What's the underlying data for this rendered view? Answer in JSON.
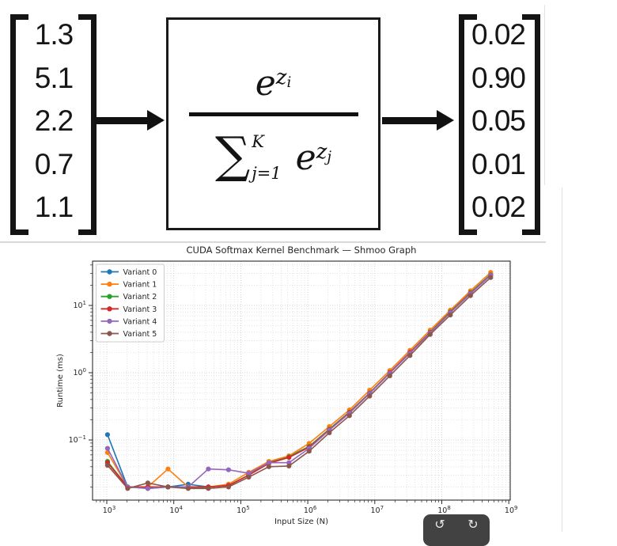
{
  "diagram": {
    "input_vector": [
      "1.3",
      "5.1",
      "2.2",
      "0.7",
      "1.1"
    ],
    "output_vector": [
      "0.02",
      "0.90",
      "0.05",
      "0.01",
      "0.02"
    ],
    "formula": {
      "numerator_base": "e",
      "numerator_exp": "z",
      "numerator_exp_sub": "i",
      "sum_symbol": "∑",
      "sum_upper": "K",
      "sum_lower": "j=1",
      "den_base": "e",
      "den_exp": "z",
      "den_exp_sub": "j"
    }
  },
  "chart_data": {
    "type": "line",
    "title": "CUDA Softmax Kernel Benchmark — Shmoo Graph",
    "xlabel": "Input Size (N)",
    "ylabel": "Runtime (ms)",
    "xscale": "log",
    "yscale": "log",
    "xlim_log10": [
      2.79,
      9.02
    ],
    "ylim_log10": [
      -1.894,
      1.66
    ],
    "x_tick_decades": [
      3,
      4,
      5,
      6,
      7,
      8,
      9
    ],
    "y_tick_decades": [
      1,
      0,
      -1
    ],
    "grid": "both-major-minor-dotted",
    "legend_position": "upper-left",
    "x": [
      1024,
      2048,
      4096,
      8192,
      16384,
      32768,
      65536,
      131072,
      262144,
      524288,
      1048576,
      2097152,
      4194304,
      8388608,
      16777216,
      33554432,
      67108864,
      134217728,
      268435456,
      536870912
    ],
    "series": [
      {
        "name": "Variant 0",
        "color": "#1f77b4",
        "values": [
          0.12,
          0.02,
          0.02,
          0.02,
          0.022,
          0.02,
          0.021,
          0.03,
          0.046,
          0.057,
          0.08,
          0.145,
          0.26,
          0.5,
          1.0,
          2.0,
          4.0,
          8.0,
          15.5,
          29.0
        ]
      },
      {
        "name": "Variant 1",
        "color": "#ff7f0e",
        "values": [
          0.065,
          0.02,
          0.02,
          0.037,
          0.02,
          0.02,
          0.022,
          0.033,
          0.048,
          0.058,
          0.089,
          0.158,
          0.28,
          0.55,
          1.08,
          2.15,
          4.3,
          8.5,
          16.5,
          31.0
        ]
      },
      {
        "name": "Variant 2",
        "color": "#2ca02c",
        "values": [
          0.048,
          0.02,
          0.019,
          0.02,
          0.02,
          0.02,
          0.021,
          0.03,
          0.045,
          0.056,
          0.08,
          0.145,
          0.258,
          0.5,
          1.0,
          2.0,
          4.0,
          8.0,
          15.5,
          28.5
        ]
      },
      {
        "name": "Variant 3",
        "color": "#d62728",
        "values": [
          0.046,
          0.02,
          0.02,
          0.02,
          0.02,
          0.02,
          0.021,
          0.03,
          0.045,
          0.055,
          0.078,
          0.142,
          0.255,
          0.495,
          1.0,
          2.0,
          3.95,
          7.9,
          15.2,
          28.2
        ]
      },
      {
        "name": "Variant 4",
        "color": "#9467bd",
        "values": [
          0.075,
          0.02,
          0.019,
          0.02,
          0.02,
          0.037,
          0.036,
          0.032,
          0.046,
          0.046,
          0.075,
          0.14,
          0.25,
          0.49,
          0.98,
          1.95,
          3.9,
          7.8,
          15.0,
          28.0
        ]
      },
      {
        "name": "Variant 5",
        "color": "#8c564b",
        "values": [
          0.042,
          0.019,
          0.023,
          0.02,
          0.019,
          0.019,
          0.02,
          0.028,
          0.04,
          0.041,
          0.068,
          0.128,
          0.23,
          0.45,
          0.9,
          1.8,
          3.7,
          7.2,
          14.0,
          26.0
        ]
      }
    ],
    "colors": {
      "grid_major": "#c9c9c9",
      "grid_minor": "#dedede",
      "spine": "#2a2a2a",
      "text": "#262626"
    }
  },
  "toolbar": {
    "rotate_ccw_icon": "↺",
    "rotate_cw_icon": "↻"
  }
}
